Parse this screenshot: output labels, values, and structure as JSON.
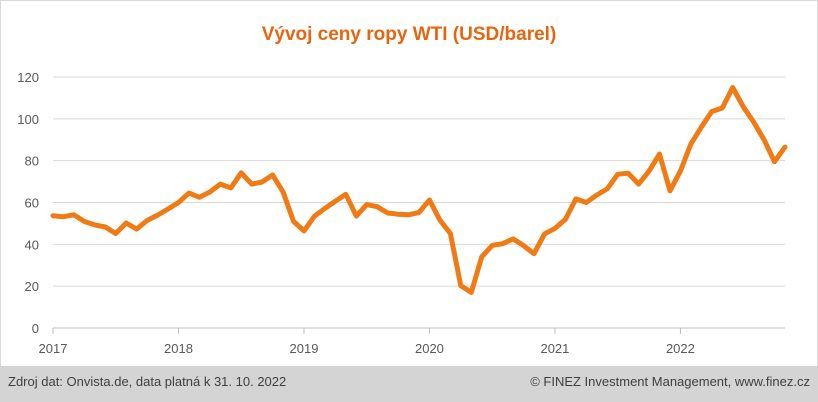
{
  "chart_data": {
    "type": "line",
    "title": "Vývoj ceny ropy WTI (USD/barel)",
    "xlabel": "",
    "ylabel": "",
    "ylim": [
      0,
      120
    ],
    "yticks": [
      0,
      20,
      40,
      60,
      80,
      100,
      120
    ],
    "xticks": [
      "2017",
      "2018",
      "2019",
      "2020",
      "2021",
      "2022"
    ],
    "xrange": [
      "2017-01",
      "2022-11"
    ],
    "grid": "horizontal",
    "line_color": "#f07a14",
    "series": [
      {
        "x": [
          "2017-01",
          "2017-02",
          "2017-03",
          "2017-04",
          "2017-05",
          "2017-06",
          "2017-07",
          "2017-08",
          "2017-09",
          "2017-10",
          "2017-11",
          "2017-12",
          "2018-01",
          "2018-02",
          "2018-03",
          "2018-04",
          "2018-05",
          "2018-06",
          "2018-07",
          "2018-08",
          "2018-09",
          "2018-10",
          "2018-11",
          "2018-12",
          "2019-01",
          "2019-02",
          "2019-03",
          "2019-04",
          "2019-05",
          "2019-06",
          "2019-07",
          "2019-08",
          "2019-09",
          "2019-10",
          "2019-11",
          "2019-12",
          "2020-01",
          "2020-02",
          "2020-03",
          "2020-04",
          "2020-05",
          "2020-06",
          "2020-07",
          "2020-08",
          "2020-09",
          "2020-10",
          "2020-11",
          "2020-12",
          "2021-01",
          "2021-02",
          "2021-03",
          "2021-04",
          "2021-05",
          "2021-06",
          "2021-07",
          "2021-08",
          "2021-09",
          "2021-10",
          "2021-11",
          "2021-12",
          "2022-01",
          "2022-02",
          "2022-03",
          "2022-04",
          "2022-05",
          "2022-06",
          "2022-07",
          "2022-08",
          "2022-09",
          "2022-10",
          "2022-11"
        ],
        "values": [
          53.7,
          53.2,
          54.1,
          50.9,
          49.3,
          48.3,
          45.2,
          50.2,
          47.3,
          51.4,
          54.0,
          56.9,
          60.0,
          64.5,
          62.5,
          65.0,
          68.8,
          67.0,
          74.2,
          68.8,
          69.8,
          73.2,
          65.0,
          51.0,
          46.4,
          53.4,
          57.2,
          60.6,
          63.9,
          53.5,
          59.0,
          58.0,
          55.0,
          54.4,
          54.1,
          55.2,
          61.2,
          51.6,
          45.2,
          20.2,
          17.0,
          34.0,
          39.5,
          40.3,
          42.6,
          39.4,
          35.5,
          45.0,
          47.6,
          51.9,
          61.7,
          60.0,
          63.6,
          66.5,
          73.5,
          74.0,
          68.8,
          75.0,
          83.2,
          65.6,
          75.0,
          88.0,
          96.0,
          103.5,
          105.2,
          115.0,
          105.8,
          98.5,
          90.0,
          79.5,
          86.5
        ]
      }
    ]
  },
  "footer": {
    "source": "Zdroj dat: Onvista.de, data platná k 31. 10. 2022",
    "copyright": "© FINEZ Investment Management, www.finez.cz"
  }
}
